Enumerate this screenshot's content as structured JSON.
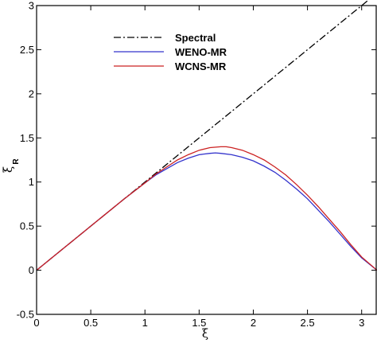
{
  "chart_data": {
    "type": "line",
    "xlabel": "ξ",
    "ylabel": "ξ",
    "ylabel_subscript": "R",
    "xlim": [
      0,
      3.14159
    ],
    "ylim": [
      -0.5,
      3
    ],
    "x_ticks": [
      0,
      0.5,
      1,
      1.5,
      2,
      2.5,
      3
    ],
    "x_tick_labels": [
      "0",
      "0.5",
      "1",
      "1.5",
      "2",
      "2.5",
      "3"
    ],
    "y_ticks": [
      -0.5,
      0,
      0.5,
      1,
      1.5,
      2,
      2.5,
      3
    ],
    "y_tick_labels": [
      "-0.5",
      "0",
      "0.5",
      "1",
      "1.5",
      "2",
      "2.5",
      "3"
    ],
    "grid": false,
    "legend_position": "top-left",
    "series": [
      {
        "name": "Spectral",
        "color": "#000000",
        "style": "dash-dot",
        "x": [
          0,
          0.5,
          1,
          1.5,
          2,
          2.5,
          3,
          3.14159
        ],
        "y": [
          0,
          0.5,
          1,
          1.5,
          2,
          2.5,
          3,
          3.14159
        ]
      },
      {
        "name": "WENO-MR",
        "color": "#3333cc",
        "style": "solid",
        "x": [
          0,
          0.2,
          0.4,
          0.6,
          0.8,
          1.0,
          1.1,
          1.2,
          1.3,
          1.4,
          1.5,
          1.6,
          1.65,
          1.7,
          1.8,
          1.9,
          2.0,
          2.1,
          2.2,
          2.3,
          2.4,
          2.5,
          2.6,
          2.7,
          2.8,
          2.9,
          3.0,
          3.14159
        ],
        "y": [
          0,
          0.2,
          0.4,
          0.6,
          0.8,
          0.99,
          1.08,
          1.15,
          1.22,
          1.27,
          1.31,
          1.325,
          1.33,
          1.325,
          1.31,
          1.28,
          1.24,
          1.18,
          1.11,
          1.02,
          0.92,
          0.81,
          0.68,
          0.55,
          0.41,
          0.27,
          0.14,
          0
        ]
      },
      {
        "name": "WCNS-MR",
        "color": "#cc2222",
        "style": "solid",
        "x": [
          0,
          0.2,
          0.4,
          0.6,
          0.8,
          1.0,
          1.1,
          1.2,
          1.3,
          1.4,
          1.5,
          1.6,
          1.7,
          1.75,
          1.8,
          1.9,
          2.0,
          2.1,
          2.2,
          2.3,
          2.4,
          2.5,
          2.6,
          2.7,
          2.8,
          2.9,
          3.0,
          3.14159
        ],
        "y": [
          0,
          0.2,
          0.4,
          0.6,
          0.8,
          0.99,
          1.09,
          1.17,
          1.25,
          1.31,
          1.36,
          1.39,
          1.4,
          1.4,
          1.39,
          1.36,
          1.31,
          1.25,
          1.17,
          1.08,
          0.97,
          0.85,
          0.72,
          0.58,
          0.44,
          0.29,
          0.15,
          0
        ]
      }
    ]
  }
}
